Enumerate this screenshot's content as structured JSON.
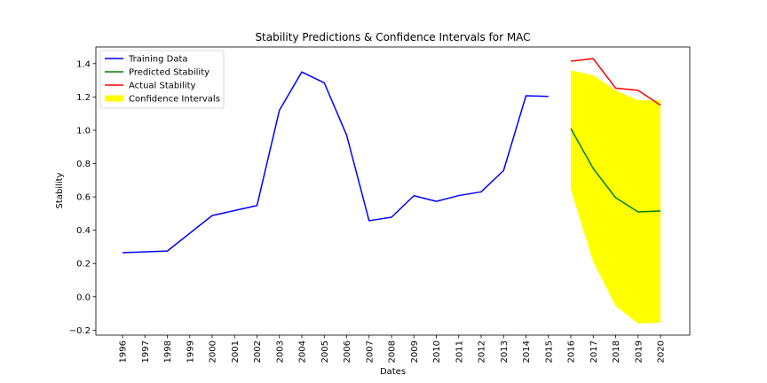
{
  "chart_data": {
    "type": "line",
    "title": "Stability Predictions & Confidence Intervals for MAC",
    "xlabel": "Dates",
    "ylabel": "Stability",
    "categories": [
      "1996",
      "1997",
      "1998",
      "1999",
      "2000",
      "2001",
      "2002",
      "2003",
      "2004",
      "2005",
      "2006",
      "2007",
      "2008",
      "2009",
      "2010",
      "2011",
      "2012",
      "2013",
      "2014",
      "2015",
      "2016",
      "2017",
      "2018",
      "2019",
      "2020"
    ],
    "ylim": [
      -0.23,
      1.5
    ],
    "yticks": [
      -0.2,
      0.0,
      0.2,
      0.4,
      0.6,
      0.8,
      1.0,
      1.2,
      1.4
    ],
    "ytick_labels": [
      "−0.2",
      "0.0",
      "0.2",
      "0.4",
      "0.6",
      "0.8",
      "1.0",
      "1.2",
      "1.4"
    ],
    "grid": false,
    "legend_position": "upper-left",
    "series": [
      {
        "name": "Training Data",
        "kind": "line",
        "color": "#0000ff",
        "x": [
          "1996",
          "1998",
          "2000",
          "2002",
          "2003",
          "2004",
          "2005",
          "2006",
          "2007",
          "2008",
          "2009",
          "2010",
          "2011",
          "2012",
          "2013",
          "2014",
          "2015"
        ],
        "values": [
          0.265,
          0.275,
          0.488,
          0.548,
          1.12,
          1.35,
          1.285,
          0.97,
          0.457,
          0.478,
          0.607,
          0.573,
          0.608,
          0.63,
          0.758,
          1.207,
          1.203
        ]
      },
      {
        "name": "Predicted Stability",
        "kind": "line",
        "color": "#008000",
        "x": [
          "2016",
          "2017",
          "2018",
          "2019",
          "2020"
        ],
        "values": [
          1.01,
          0.77,
          0.595,
          0.51,
          0.515
        ]
      },
      {
        "name": "Actual Stability",
        "kind": "line",
        "color": "#ff0000",
        "x": [
          "2016",
          "2017",
          "2018",
          "2019",
          "2020"
        ],
        "values": [
          1.415,
          1.43,
          1.253,
          1.24,
          1.15
        ]
      },
      {
        "name": "Confidence Intervals",
        "kind": "band",
        "color": "#ffff00",
        "x": [
          "2016",
          "2017",
          "2018",
          "2019",
          "2020"
        ],
        "upper": [
          1.36,
          1.33,
          1.24,
          1.18,
          1.18
        ],
        "lower": [
          0.645,
          0.21,
          -0.055,
          -0.16,
          -0.155
        ]
      }
    ]
  }
}
